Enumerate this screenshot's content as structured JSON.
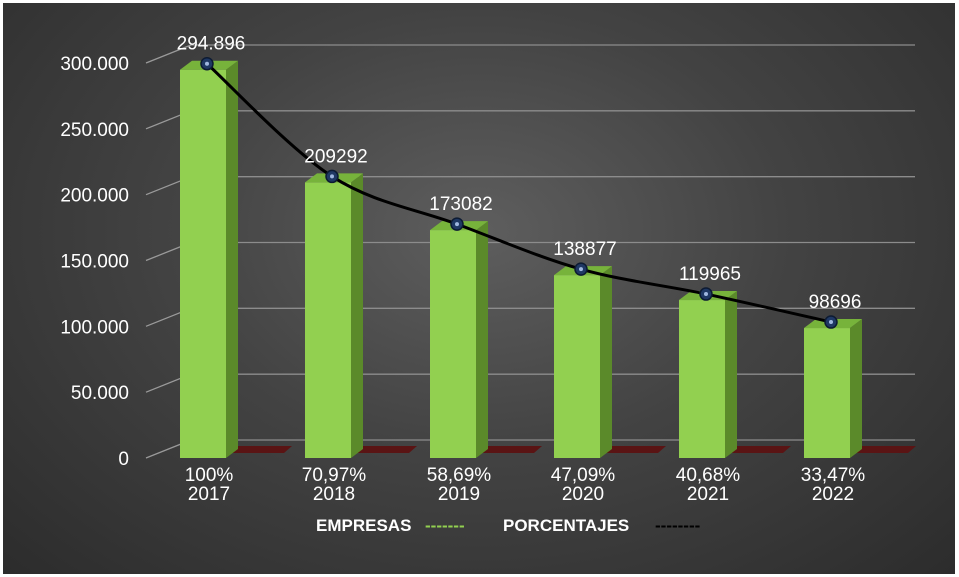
{
  "chart_data": {
    "type": "bar",
    "categories": [
      "2017",
      "2018",
      "2019",
      "2020",
      "2021",
      "2022"
    ],
    "percent_labels": [
      "100%",
      "70,97%",
      "58,69%",
      "47,09%",
      "40,68%",
      "33,47%"
    ],
    "series": [
      {
        "name": "EMPRESAS",
        "type": "bar",
        "values": [
          294896,
          209292,
          173082,
          138877,
          119965,
          98696
        ]
      },
      {
        "name": "PORCENTAJES",
        "type": "line",
        "values": [
          294896,
          209292,
          173082,
          138877,
          119965,
          98696
        ]
      }
    ],
    "data_labels": [
      "294.896",
      "209292",
      "173082",
      "138877",
      "119965",
      "98696"
    ],
    "y_ticks": [
      "0",
      "50.000",
      "100.000",
      "150.000",
      "200.000",
      "250.000",
      "300.000"
    ],
    "ylim": [
      0,
      300000
    ],
    "grid": true,
    "legend_position": "bottom",
    "legend": {
      "items": [
        {
          "label": "EMPRESAS",
          "dash": "-------",
          "color": "#92d050"
        },
        {
          "label": "PORCENTAJES",
          "dash": "--------",
          "color": "#000000"
        }
      ]
    },
    "colors": {
      "bar": "#92d050",
      "line": "#000000",
      "marker": "#1f3864",
      "floor_accent": "#5a1414"
    }
  }
}
